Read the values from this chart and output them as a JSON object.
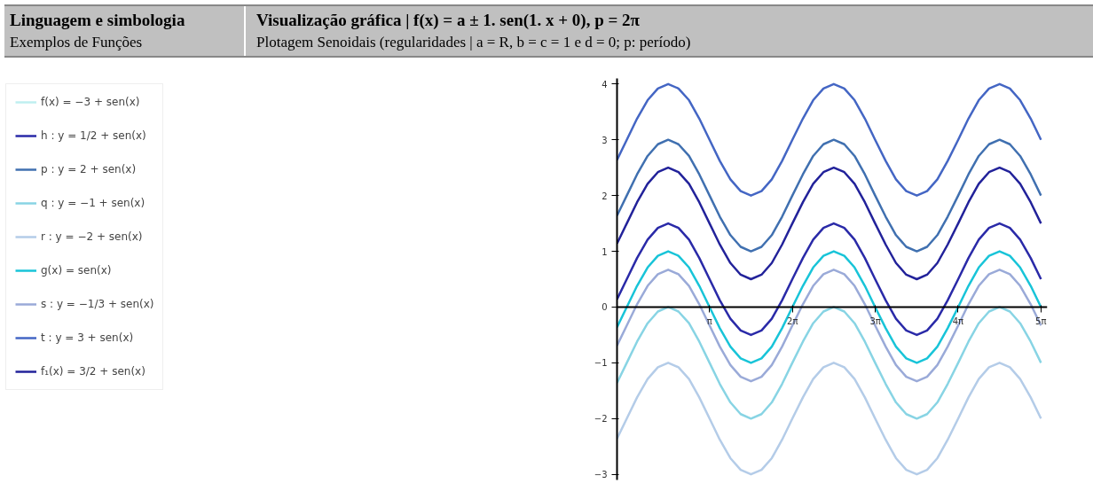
{
  "chart_data": {
    "type": "line",
    "title": "Visualização gráfica | f(x) = a ± 1. sen(1. x + 0), p = 2π",
    "subtitle": "Plotagem Senoidais (regularidades | a = R, b = c = 1 e d = 0; p: período)",
    "annotations": [
      "Linguagem e simbologia",
      "Exemplos de Funções"
    ],
    "x": [
      -0.37,
      0,
      0.39,
      0.79,
      1.18,
      1.57,
      1.96,
      2.36,
      2.75,
      3.14,
      3.53,
      3.93,
      4.32,
      4.71,
      5.11,
      5.5,
      5.89,
      6.28,
      6.68,
      7.07,
      7.46,
      7.85,
      8.25,
      8.64,
      9.03,
      9.42,
      9.82,
      10.21,
      10.6,
      11.0,
      11.39,
      11.78,
      12.17,
      12.57,
      12.96,
      13.35,
      13.74,
      14.14,
      14.53,
      14.92,
      15.32,
      15.71
    ],
    "xlim": [
      -0.37,
      15.95
    ],
    "xticks": [
      {
        "value": 3.1416,
        "label": "π"
      },
      {
        "value": 6.2832,
        "label": "2π"
      },
      {
        "value": 9.4248,
        "label": "3π"
      },
      {
        "value": 12.5664,
        "label": "4π"
      },
      {
        "value": 15.708,
        "label": "5π"
      }
    ],
    "ylim": [
      -3.1,
      4.1
    ],
    "yticks": [
      -3,
      -2,
      -1,
      0,
      1,
      2,
      3,
      4
    ],
    "grid": false,
    "legend": "left",
    "marker": "none",
    "line_style": "solid",
    "series": [
      {
        "name": "f(x) = −3 + sen(x)",
        "color": "#bfeff0",
        "values": [
          null,
          null,
          null,
          null,
          null,
          null,
          null,
          null,
          null,
          null,
          null,
          null,
          null,
          null,
          null,
          null,
          null,
          null,
          null,
          null,
          null,
          null,
          null,
          null,
          null,
          null,
          null,
          null,
          null,
          null,
          null,
          null,
          null,
          null,
          null,
          null,
          null,
          null,
          null,
          null,
          null,
          null
        ]
      },
      {
        "name": "h : y = 1/2 + sen(x)",
        "color": "#2a2aa8",
        "values": [
          0.14,
          0.5,
          0.88,
          1.21,
          1.42,
          1.5,
          1.42,
          1.21,
          0.88,
          0.5,
          0.12,
          -0.21,
          -0.42,
          -0.5,
          -0.42,
          -0.21,
          0.12,
          0.5,
          0.88,
          1.21,
          1.42,
          1.5,
          1.42,
          1.21,
          0.88,
          0.5,
          0.12,
          -0.21,
          -0.42,
          -0.5,
          -0.42,
          -0.21,
          0.12,
          0.5,
          0.88,
          1.21,
          1.42,
          1.5,
          1.42,
          1.21,
          0.88,
          0.5
        ]
      },
      {
        "name": "p : y = 2 + sen(x)",
        "color": "#4070b0",
        "values": [
          1.64,
          2,
          2.38,
          2.71,
          2.92,
          3,
          2.92,
          2.71,
          2.38,
          2,
          1.62,
          1.29,
          1.08,
          1,
          1.08,
          1.29,
          1.62,
          2,
          2.38,
          2.71,
          2.92,
          3,
          2.92,
          2.71,
          2.38,
          2,
          1.62,
          1.29,
          1.08,
          1,
          1.08,
          1.29,
          1.62,
          2,
          2.38,
          2.71,
          2.92,
          3,
          2.92,
          2.71,
          2.38,
          2
        ]
      },
      {
        "name": "q : y = −1 + sen(x)",
        "color": "#88d4e4",
        "values": [
          -1.36,
          -1,
          -0.62,
          -0.29,
          -0.08,
          0,
          -0.08,
          -0.29,
          -0.62,
          -1,
          -1.38,
          -1.71,
          -1.92,
          -2,
          -1.92,
          -1.71,
          -1.38,
          -1,
          -0.62,
          -0.29,
          -0.08,
          0,
          -0.08,
          -0.29,
          -0.62,
          -1,
          -1.38,
          -1.71,
          -1.92,
          -2,
          -1.92,
          -1.71,
          -1.38,
          -1,
          -0.62,
          -0.29,
          -0.08,
          0,
          -0.08,
          -0.29,
          -0.62,
          -1
        ]
      },
      {
        "name": "r : y = −2 + sen(x)",
        "color": "#b4cce8",
        "values": [
          -2.36,
          -2,
          -1.62,
          -1.29,
          -1.08,
          -1,
          -1.08,
          -1.29,
          -1.62,
          -2,
          -2.38,
          -2.71,
          -2.92,
          -3,
          -2.92,
          -2.71,
          -2.38,
          -2,
          -1.62,
          -1.29,
          -1.08,
          -1,
          -1.08,
          -1.29,
          -1.62,
          -2,
          -2.38,
          -2.71,
          -2.92,
          -3,
          -2.92,
          -2.71,
          -2.38,
          -2,
          -1.62,
          -1.29,
          -1.08,
          -1,
          -1.08,
          -1.29,
          -1.62,
          -2
        ]
      },
      {
        "name": "g(x) = sen(x)",
        "color": "#18c4d8",
        "values": [
          -0.36,
          0,
          0.38,
          0.71,
          0.92,
          1,
          0.92,
          0.71,
          0.38,
          0,
          -0.38,
          -0.71,
          -0.92,
          -1,
          -0.92,
          -0.71,
          -0.38,
          0,
          0.38,
          0.71,
          0.92,
          1,
          0.92,
          0.71,
          0.38,
          0,
          -0.38,
          -0.71,
          -0.92,
          -1,
          -0.92,
          -0.71,
          -0.38,
          0,
          0.38,
          0.71,
          0.92,
          1,
          0.92,
          0.71,
          0.38,
          0
        ]
      },
      {
        "name": "s : y = −1/3 + sen(x)",
        "color": "#9aaad8",
        "values": [
          -0.69,
          -0.33,
          0.05,
          0.38,
          0.59,
          0.67,
          0.59,
          0.38,
          0.05,
          -0.33,
          -0.71,
          -1.04,
          -1.25,
          -1.33,
          -1.25,
          -1.04,
          -0.71,
          -0.33,
          0.05,
          0.38,
          0.59,
          0.67,
          0.59,
          0.38,
          0.05,
          -0.33,
          -0.71,
          -1.04,
          -1.25,
          -1.33,
          -1.25,
          -1.04,
          -0.71,
          -0.33,
          0.05,
          0.38,
          0.59,
          0.67,
          0.59,
          0.38,
          0.05,
          -0.33
        ]
      },
      {
        "name": "t : y = 3 + sen(x)",
        "color": "#4466c4",
        "values": [
          2.64,
          3,
          3.38,
          3.71,
          3.92,
          4,
          3.92,
          3.71,
          3.38,
          3,
          2.62,
          2.29,
          2.08,
          2,
          2.08,
          2.29,
          2.62,
          3,
          3.38,
          3.71,
          3.92,
          4,
          3.92,
          3.71,
          3.38,
          3,
          2.62,
          2.29,
          2.08,
          2,
          2.08,
          2.29,
          2.62,
          3,
          3.38,
          3.71,
          3.92,
          4,
          3.92,
          3.71,
          3.38,
          3
        ]
      },
      {
        "name": "f₁(x) = 3/2 + sen(x)",
        "color": "#22229a",
        "values": [
          1.14,
          1.5,
          1.88,
          2.21,
          2.42,
          2.5,
          2.42,
          2.21,
          1.88,
          1.5,
          1.12,
          0.79,
          0.58,
          0.5,
          0.58,
          0.79,
          1.12,
          1.5,
          1.88,
          2.21,
          2.42,
          2.5,
          2.42,
          2.21,
          1.88,
          1.5,
          1.12,
          0.79,
          0.58,
          0.5,
          0.58,
          0.79,
          1.12,
          1.5,
          1.88,
          2.21,
          2.42,
          2.5,
          2.42,
          2.21,
          1.88,
          1.5
        ]
      }
    ]
  }
}
